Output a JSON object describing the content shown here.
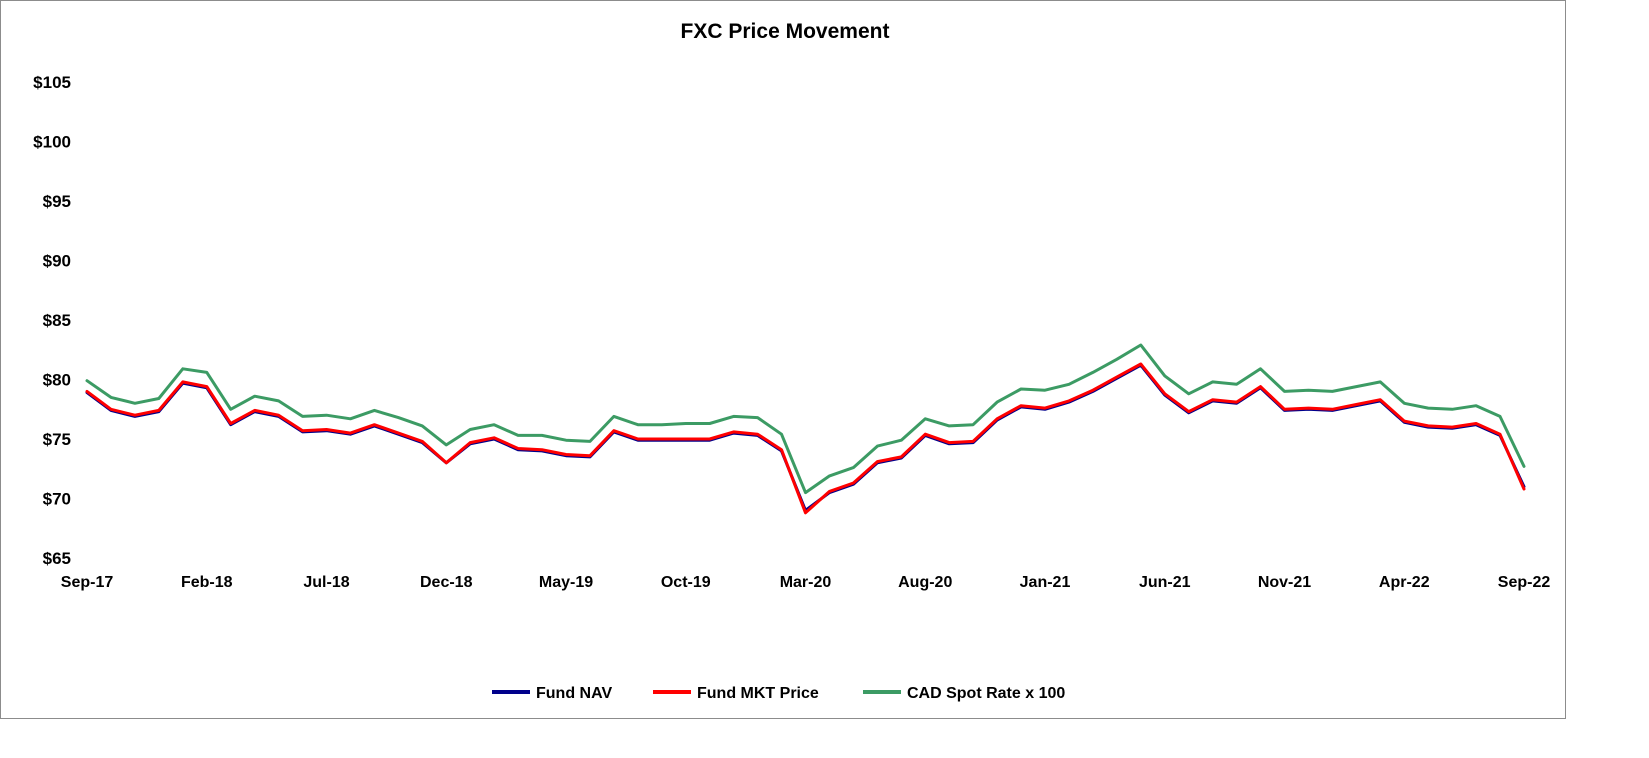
{
  "chart_data": {
    "type": "line",
    "title": "FXC Price Movement",
    "xlabel": "",
    "ylabel": "",
    "ylim": [
      65,
      105
    ],
    "y_ticks": [
      65,
      70,
      75,
      80,
      85,
      90,
      95,
      100,
      105
    ],
    "y_tick_labels": [
      "$65",
      "$70",
      "$75",
      "$80",
      "$85",
      "$90",
      "$95",
      "$100",
      "$105"
    ],
    "x_range": [
      "2017-09",
      "2022-09"
    ],
    "x_tick_labels": [
      "Sep-17",
      "Feb-18",
      "Jul-18",
      "Dec-18",
      "May-19",
      "Oct-19",
      "Mar-20",
      "Aug-20",
      "Jan-21",
      "Jun-21",
      "Nov-21",
      "Apr-22",
      "Sep-22"
    ],
    "grid": false,
    "legend_position": "bottom",
    "x": [
      "2017-09",
      "2017-10",
      "2017-11",
      "2017-12",
      "2018-01",
      "2018-02",
      "2018-03",
      "2018-04",
      "2018-05",
      "2018-06",
      "2018-07",
      "2018-08",
      "2018-09",
      "2018-10",
      "2018-11",
      "2018-12",
      "2019-01",
      "2019-02",
      "2019-03",
      "2019-04",
      "2019-05",
      "2019-06",
      "2019-07",
      "2019-08",
      "2019-09",
      "2019-10",
      "2019-11",
      "2019-12",
      "2020-01",
      "2020-02",
      "2020-03",
      "2020-04",
      "2020-05",
      "2020-06",
      "2020-07",
      "2020-08",
      "2020-09",
      "2020-10",
      "2020-11",
      "2020-12",
      "2021-01",
      "2021-02",
      "2021-03",
      "2021-04",
      "2021-05",
      "2021-06",
      "2021-07",
      "2021-08",
      "2021-09",
      "2021-10",
      "2021-11",
      "2021-12",
      "2022-01",
      "2022-02",
      "2022-03",
      "2022-04",
      "2022-05",
      "2022-06",
      "2022-07",
      "2022-08",
      "2022-09"
    ],
    "series": [
      {
        "name": "Fund NAV",
        "color": "#00008b",
        "values": [
          78.9,
          77.4,
          76.9,
          77.3,
          79.7,
          79.3,
          76.2,
          77.3,
          76.9,
          75.6,
          75.7,
          75.4,
          76.1,
          75.4,
          74.7,
          73.0,
          74.6,
          75.0,
          74.1,
          74.0,
          73.6,
          73.5,
          75.6,
          74.9,
          74.9,
          74.9,
          74.9,
          75.5,
          75.3,
          74.0,
          69.0,
          70.5,
          71.2,
          73.0,
          73.4,
          75.3,
          74.6,
          74.7,
          76.6,
          77.7,
          77.5,
          78.1,
          79.0,
          80.1,
          81.2,
          78.7,
          77.2,
          78.2,
          78.0,
          79.3,
          77.4,
          77.5,
          77.4,
          77.8,
          78.2,
          76.4,
          76.0,
          75.9,
          76.2,
          75.3,
          71.0
        ]
      },
      {
        "name": "Fund MKT Price",
        "color": "#ff0000",
        "values": [
          79.0,
          77.5,
          77.0,
          77.4,
          79.8,
          79.4,
          76.3,
          77.4,
          77.0,
          75.7,
          75.8,
          75.5,
          76.2,
          75.5,
          74.8,
          73.0,
          74.7,
          75.1,
          74.2,
          74.1,
          73.7,
          73.6,
          75.7,
          75.0,
          75.0,
          75.0,
          75.0,
          75.6,
          75.4,
          74.1,
          68.8,
          70.6,
          71.3,
          73.1,
          73.5,
          75.4,
          74.7,
          74.8,
          76.7,
          77.8,
          77.6,
          78.2,
          79.1,
          80.2,
          81.3,
          78.8,
          77.3,
          78.3,
          78.1,
          79.4,
          77.5,
          77.6,
          77.5,
          77.9,
          78.3,
          76.5,
          76.1,
          76.0,
          76.3,
          75.4,
          70.8
        ]
      },
      {
        "name": "CAD Spot Rate x 100",
        "color": "#3c9b64",
        "values": [
          79.9,
          78.5,
          78.0,
          78.4,
          80.9,
          80.6,
          77.5,
          78.6,
          78.2,
          76.9,
          77.0,
          76.7,
          77.4,
          76.8,
          76.1,
          74.5,
          75.8,
          76.2,
          75.3,
          75.3,
          74.9,
          74.8,
          76.9,
          76.2,
          76.2,
          76.3,
          76.3,
          76.9,
          76.8,
          75.4,
          70.5,
          71.9,
          72.6,
          74.4,
          74.9,
          76.7,
          76.1,
          76.2,
          78.1,
          79.2,
          79.1,
          79.6,
          80.6,
          81.7,
          82.9,
          80.3,
          78.8,
          79.8,
          79.6,
          80.9,
          79.0,
          79.1,
          79.0,
          79.4,
          79.8,
          78.0,
          77.6,
          77.5,
          77.8,
          76.9,
          72.7
        ]
      }
    ]
  }
}
